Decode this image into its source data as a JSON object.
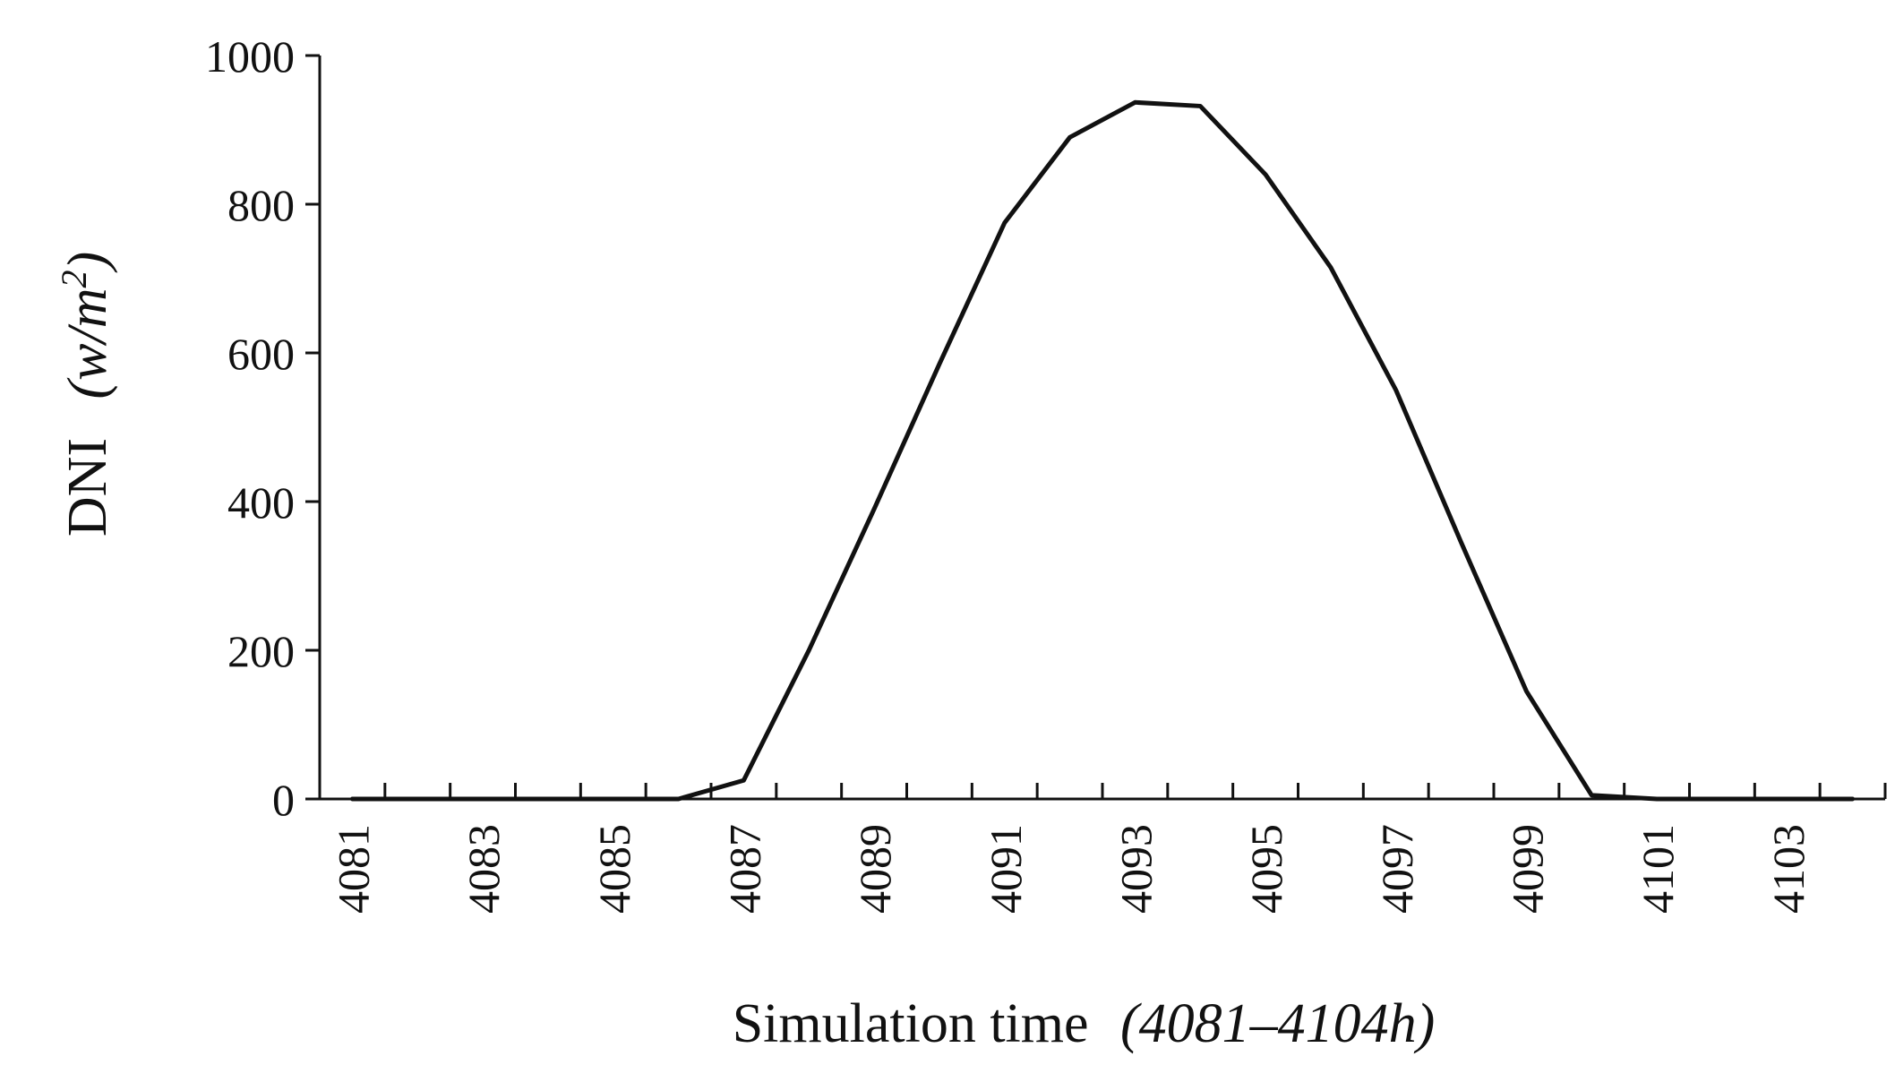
{
  "chart_data": {
    "type": "line",
    "xlabel": "Simulation time",
    "xlabel_unit": "(4081–4104h)",
    "ylabel": "DNI",
    "ylabel_unit_prefix": "(w/m",
    "ylabel_unit_sup": "2",
    "ylabel_unit_suffix": ")",
    "ylim": [
      0,
      1000
    ],
    "yticks": [
      0,
      200,
      400,
      600,
      800,
      1000
    ],
    "xlim": [
      4080.5,
      4104.5
    ],
    "xticks_labeled": [
      4081,
      4083,
      4085,
      4087,
      4089,
      4091,
      4093,
      4095,
      4097,
      4099,
      4101,
      4103
    ],
    "grid": false,
    "series": [
      {
        "x": [
          4081,
          4082,
          4083,
          4084,
          4085,
          4086,
          4087,
          4088,
          4089,
          4090,
          4091,
          4092,
          4093,
          4094,
          4095,
          4096,
          4097,
          4098,
          4099,
          4100,
          4101,
          4102,
          4103,
          4104
        ],
        "values": [
          0,
          0,
          0,
          0,
          0,
          0,
          25,
          200,
          390,
          585,
          775,
          890,
          937,
          932,
          840,
          715,
          550,
          345,
          145,
          5,
          0,
          0,
          0,
          0
        ],
        "color": "#111111"
      }
    ]
  }
}
